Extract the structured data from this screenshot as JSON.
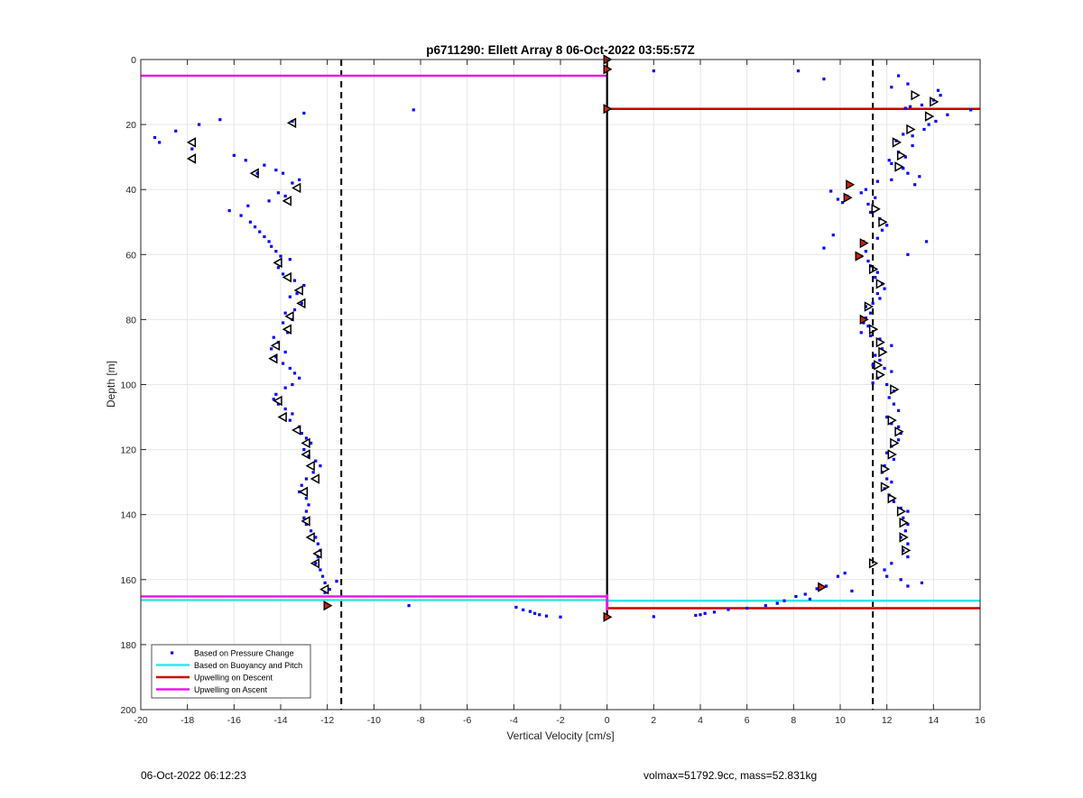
{
  "chart_data": {
    "type": "scatter",
    "title": "p6711290: Ellett Array 8 06-Oct-2022 03:55:57Z",
    "xlabel": "Vertical Velocity [cm/s]",
    "ylabel": "Depth [m]",
    "xlim": [
      -20,
      16
    ],
    "ylim": [
      0,
      200
    ],
    "y_reversed": true,
    "grid": true,
    "xticks": [
      "-20",
      "-18",
      "-16",
      "-14",
      "-12",
      "-10",
      "-8",
      "-6",
      "-4",
      "-2",
      "0",
      "2",
      "4",
      "6",
      "8",
      "10",
      "12",
      "14",
      "16"
    ],
    "yticks": [
      "0",
      "20",
      "40",
      "60",
      "80",
      "100",
      "120",
      "140",
      "160",
      "180",
      "200"
    ],
    "legend": {
      "placement": "bottom-left",
      "entries": [
        {
          "label": "Based on Pressure Change",
          "color": "#0000ff"
        },
        {
          "label": "Based on Buoyancy and Pitch",
          "color": "#33e6e6"
        },
        {
          "label": "Upwelling on Descent",
          "color": "#cc0000"
        },
        {
          "label": "Upwelling on Ascent",
          "color": "#e61ae6"
        }
      ]
    },
    "colors": {
      "pressure": "#0000ff",
      "buoyancy": "#33e6e6",
      "descent": "#cc0000",
      "ascent": "#e61ae6",
      "dashed": "#000000"
    },
    "dashed_lines_x": [
      -11.4,
      11.4
    ],
    "zero_line": {
      "x": 0,
      "depth": [
        0,
        172
      ]
    },
    "upwelling_ascent": [
      {
        "depth": 5,
        "x0": -20,
        "x1": 0
      },
      {
        "depth": 165.2,
        "x0": -20,
        "x1": 0
      }
    ],
    "upwelling_descent": [
      {
        "depth": 15.2,
        "x0": 0,
        "x1": 16
      },
      {
        "depth": 168.8,
        "x0": 0,
        "x1": 16
      }
    ],
    "buoyancy_pitch": [
      {
        "depth": 166.3,
        "x0": -20,
        "x1": 0
      },
      {
        "depth": 166.5,
        "x0": 0,
        "x1": 16
      }
    ],
    "pressure_points": [
      [
        -19.4,
        24
      ],
      [
        -19.2,
        25.5
      ],
      [
        -18.5,
        22
      ],
      [
        -17.5,
        20
      ],
      [
        -16.6,
        18.5
      ],
      [
        -17.8,
        27.5
      ],
      [
        -13,
        16.5
      ],
      [
        -8.3,
        15.5
      ],
      [
        -13.5,
        19
      ],
      [
        -16,
        29.5
      ],
      [
        -15.5,
        31
      ],
      [
        -14.7,
        32.5
      ],
      [
        -15,
        35
      ],
      [
        -14.2,
        34
      ],
      [
        -13.9,
        35
      ],
      [
        -13.2,
        37
      ],
      [
        -13.5,
        38
      ],
      [
        -14.1,
        41
      ],
      [
        -13.8,
        42
      ],
      [
        -14.5,
        43.5
      ],
      [
        -15.4,
        45
      ],
      [
        -16.2,
        46.5
      ],
      [
        -15.7,
        48
      ],
      [
        -15.3,
        50
      ],
      [
        -15.1,
        51.5
      ],
      [
        -14.9,
        53
      ],
      [
        -14.7,
        54.5
      ],
      [
        -14.5,
        56
      ],
      [
        -14.4,
        57.5
      ],
      [
        -14.2,
        59
      ],
      [
        -14,
        60.5
      ],
      [
        -13.6,
        61.5
      ],
      [
        -14.1,
        64
      ],
      [
        -13.9,
        66
      ],
      [
        -13.4,
        68
      ],
      [
        -13,
        69.5
      ],
      [
        -13.3,
        72
      ],
      [
        -13.6,
        73
      ],
      [
        -13.1,
        75
      ],
      [
        -13.4,
        77
      ],
      [
        -13.8,
        78
      ],
      [
        -13.5,
        80
      ],
      [
        -13.9,
        81
      ],
      [
        -13.7,
        84
      ],
      [
        -14.3,
        85.5
      ],
      [
        -14.1,
        87
      ],
      [
        -14.4,
        89
      ],
      [
        -13.8,
        90
      ],
      [
        -14.2,
        91.5
      ],
      [
        -13.9,
        93.5
      ],
      [
        -13.6,
        95
      ],
      [
        -13.4,
        96.5
      ],
      [
        -13.2,
        98
      ],
      [
        -13.5,
        100
      ],
      [
        -13.8,
        101
      ],
      [
        -14.2,
        103
      ],
      [
        -14.3,
        104.5
      ],
      [
        -14.1,
        106
      ],
      [
        -13.8,
        107.5
      ],
      [
        -13.5,
        109
      ],
      [
        -13.6,
        111
      ],
      [
        -13.2,
        113
      ],
      [
        -13.1,
        115
      ],
      [
        -12.9,
        116.5
      ],
      [
        -12.7,
        118
      ],
      [
        -13,
        120
      ],
      [
        -12.8,
        122
      ],
      [
        -12.5,
        123.5
      ],
      [
        -12.3,
        125
      ],
      [
        -12.6,
        127
      ],
      [
        -12.9,
        129
      ],
      [
        -13.1,
        131
      ],
      [
        -13.2,
        133
      ],
      [
        -12.9,
        135
      ],
      [
        -12.8,
        137
      ],
      [
        -12.9,
        139
      ],
      [
        -13,
        141
      ],
      [
        -12.9,
        143
      ],
      [
        -12.7,
        145
      ],
      [
        -12.5,
        147
      ],
      [
        -12.4,
        149
      ],
      [
        -12.3,
        151
      ],
      [
        -12.4,
        153
      ],
      [
        -12.5,
        155
      ],
      [
        -12.3,
        157
      ],
      [
        -12.2,
        159
      ],
      [
        -12.1,
        161
      ],
      [
        -11.6,
        160.5
      ],
      [
        -11.9,
        163
      ],
      [
        -12.1,
        164
      ],
      [
        -8.5,
        168
      ],
      [
        -3.9,
        168.5
      ],
      [
        -3.6,
        169.3
      ],
      [
        -3.3,
        169.8
      ],
      [
        -3.1,
        170.4
      ],
      [
        -2.9,
        170.8
      ],
      [
        -2.6,
        171.2
      ],
      [
        -2,
        171.5
      ],
      [
        2,
        3.5
      ],
      [
        8.2,
        3.5
      ],
      [
        9.3,
        6
      ],
      [
        12.5,
        5
      ],
      [
        12.9,
        7.5
      ],
      [
        12.2,
        8.5
      ],
      [
        14.2,
        9.5
      ],
      [
        14.3,
        11
      ],
      [
        14,
        12.5
      ],
      [
        13.5,
        14
      ],
      [
        13,
        14.5
      ],
      [
        12.8,
        15
      ],
      [
        14.6,
        17
      ],
      [
        15.6,
        15.5
      ],
      [
        14.1,
        19
      ],
      [
        13.8,
        20
      ],
      [
        13.6,
        21.5
      ],
      [
        12.7,
        23
      ],
      [
        13.1,
        23.5
      ],
      [
        12.4,
        25
      ],
      [
        13.1,
        26.5
      ],
      [
        12.5,
        28.5
      ],
      [
        12.8,
        30
      ],
      [
        12.1,
        31
      ],
      [
        12.2,
        32
      ],
      [
        12.7,
        33.5
      ],
      [
        12.9,
        35
      ],
      [
        13.4,
        36
      ],
      [
        12.2,
        37
      ],
      [
        13.2,
        38.5
      ],
      [
        11.6,
        37.5
      ],
      [
        10.4,
        38.5
      ],
      [
        11.1,
        40
      ],
      [
        9.6,
        40.5
      ],
      [
        10.9,
        41
      ],
      [
        10.3,
        42
      ],
      [
        9.9,
        43
      ],
      [
        10.1,
        44
      ],
      [
        11.5,
        42.5
      ],
      [
        11.2,
        44.5
      ],
      [
        11.3,
        47
      ],
      [
        11.7,
        49
      ],
      [
        12,
        51
      ],
      [
        11.8,
        52.5
      ],
      [
        9.7,
        54
      ],
      [
        11.6,
        55
      ],
      [
        11,
        56
      ],
      [
        9.3,
        58
      ],
      [
        13.7,
        56
      ],
      [
        12.9,
        60
      ],
      [
        11.1,
        59
      ],
      [
        10.9,
        60.5
      ],
      [
        11.2,
        62
      ],
      [
        11.3,
        63.5
      ],
      [
        11.6,
        65.5
      ],
      [
        11.5,
        67
      ],
      [
        11.8,
        69
      ],
      [
        11.9,
        70.5
      ],
      [
        11.6,
        72
      ],
      [
        11.7,
        73.5
      ],
      [
        11.4,
        75
      ],
      [
        11.1,
        76
      ],
      [
        11.3,
        78
      ],
      [
        11.1,
        79.5
      ],
      [
        11,
        81
      ],
      [
        11.2,
        82
      ],
      [
        10.9,
        84
      ],
      [
        11.3,
        85
      ],
      [
        11.7,
        86
      ],
      [
        12.2,
        88
      ],
      [
        11.8,
        89
      ],
      [
        11.5,
        91
      ],
      [
        11.7,
        92.5
      ],
      [
        11.4,
        94
      ],
      [
        11.9,
        95
      ],
      [
        12.2,
        96
      ],
      [
        11.6,
        98
      ],
      [
        11.4,
        99.5
      ],
      [
        12,
        100
      ],
      [
        12.3,
        102
      ],
      [
        12.1,
        104
      ],
      [
        12.3,
        106
      ],
      [
        12.5,
        108
      ],
      [
        12,
        110
      ],
      [
        12.2,
        112
      ],
      [
        12.5,
        113
      ],
      [
        12.6,
        115
      ],
      [
        12.5,
        117
      ],
      [
        12.2,
        119
      ],
      [
        12,
        121
      ],
      [
        12.3,
        123
      ],
      [
        11.9,
        125
      ],
      [
        11.8,
        127
      ],
      [
        12,
        129
      ],
      [
        12.2,
        130
      ],
      [
        11.9,
        132
      ],
      [
        12.1,
        134
      ],
      [
        12.3,
        136
      ],
      [
        12.6,
        138
      ],
      [
        12.9,
        139
      ],
      [
        12.7,
        141
      ],
      [
        12.9,
        143
      ],
      [
        12.8,
        145
      ],
      [
        12.6,
        147
      ],
      [
        12.9,
        149
      ],
      [
        12.7,
        151
      ],
      [
        12.9,
        153
      ],
      [
        12.2,
        155
      ],
      [
        11.9,
        157
      ],
      [
        12,
        159
      ],
      [
        12.6,
        160
      ],
      [
        13.5,
        161
      ],
      [
        12.9,
        162
      ],
      [
        10.2,
        158
      ],
      [
        9.9,
        159
      ],
      [
        10.5,
        163.5
      ],
      [
        9.4,
        162
      ],
      [
        9,
        162.8
      ],
      [
        8.5,
        164.5
      ],
      [
        8.1,
        165.2
      ],
      [
        8.7,
        166
      ],
      [
        7.6,
        166.5
      ],
      [
        7.3,
        167.3
      ],
      [
        6.8,
        168
      ],
      [
        6,
        168.8
      ],
      [
        5.2,
        169.2
      ],
      [
        4.6,
        170
      ],
      [
        4.2,
        170.4
      ],
      [
        4,
        170.8
      ],
      [
        3.8,
        171
      ],
      [
        2,
        171.4
      ]
    ],
    "ascent_markers": [
      [
        -13.5,
        19.5
      ],
      [
        -17.8,
        25.5
      ],
      [
        -17.8,
        30.5
      ],
      [
        -15.1,
        35
      ],
      [
        -13.3,
        39.5
      ],
      [
        -13.7,
        43.5
      ],
      [
        -14.1,
        62.5
      ],
      [
        -13.7,
        67
      ],
      [
        -13.2,
        71
      ],
      [
        -13.1,
        75
      ],
      [
        -13.6,
        79
      ],
      [
        -13.7,
        83
      ],
      [
        -14.2,
        88
      ],
      [
        -14.3,
        92
      ],
      [
        -14.1,
        105
      ],
      [
        -13.9,
        110
      ],
      [
        -13.3,
        114
      ],
      [
        -12.9,
        118
      ],
      [
        -12.9,
        121.5
      ],
      [
        -12.7,
        125
      ],
      [
        -12.5,
        129
      ],
      [
        -13,
        133
      ],
      [
        -12.9,
        142
      ],
      [
        -12.7,
        147
      ],
      [
        -12.4,
        152
      ],
      [
        -12.5,
        155
      ],
      [
        -12.1,
        163
      ]
    ],
    "descent_markers": [
      [
        13.2,
        11
      ],
      [
        14,
        13
      ],
      [
        13.8,
        17.5
      ],
      [
        13,
        21.5
      ],
      [
        12.4,
        25.5
      ],
      [
        12.6,
        29.5
      ],
      [
        12.5,
        33
      ],
      [
        11.5,
        46
      ],
      [
        11.8,
        50
      ],
      [
        11.4,
        64.5
      ],
      [
        11.7,
        69
      ],
      [
        11.2,
        76
      ],
      [
        11.4,
        83
      ],
      [
        11.7,
        87
      ],
      [
        11.8,
        90
      ],
      [
        11.6,
        94
      ],
      [
        11.7,
        97
      ],
      [
        12.3,
        101.5
      ],
      [
        12.2,
        111
      ],
      [
        12.5,
        114.5
      ],
      [
        12.3,
        118
      ],
      [
        12.2,
        121.5
      ],
      [
        11.9,
        126
      ],
      [
        11.9,
        131.5
      ],
      [
        12.2,
        135
      ],
      [
        12.6,
        139
      ],
      [
        12.7,
        142.5
      ],
      [
        12.7,
        147
      ],
      [
        12.8,
        151
      ],
      [
        11.4,
        155
      ]
    ],
    "red_markers": [
      [
        0,
        0
      ],
      [
        0,
        3
      ],
      [
        0,
        15.2
      ],
      [
        10.4,
        38.5
      ],
      [
        10.3,
        42.5
      ],
      [
        11,
        56.5
      ],
      [
        10.8,
        60.5
      ],
      [
        11,
        80
      ],
      [
        9.2,
        162.3
      ],
      [
        -12,
        168
      ],
      [
        0,
        171.5
      ]
    ]
  },
  "footer": {
    "timestamp": "06-Oct-2022 06:12:23",
    "summary": "volmax=51792.9cc, mass=52.831kg"
  }
}
